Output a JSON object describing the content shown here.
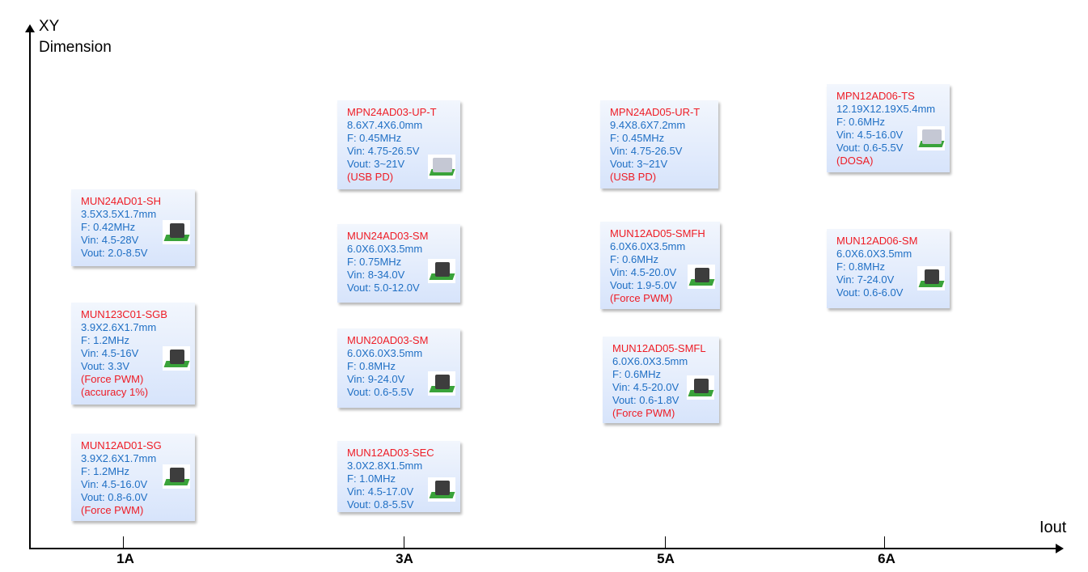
{
  "axes": {
    "y_title_line1": "XY",
    "y_title_line2": "Dimension",
    "x_title": "Iout",
    "x_ticks": [
      "1A",
      "3A",
      "5A",
      "6A"
    ]
  },
  "colors": {
    "part_name": "#ee1c25",
    "spec": "#1f6fc4",
    "note": "#ee1c25",
    "card_bg": "#dce7fb"
  },
  "cards": [
    {
      "name": "MUN24AD01-SH",
      "lines": [
        "3.5X3.5X1.7mm",
        "F: 0.42MHz",
        "Vin: 4.5-28V",
        "Vout: 2.0-8.5V"
      ],
      "notes": [],
      "icon": "module-chip-icon"
    },
    {
      "name": "MUN123C01-SGB",
      "lines": [
        "3.9X2.6X1.7mm",
        "F: 1.2MHz",
        "Vin: 4.5-16V",
        "Vout: 3.3V"
      ],
      "notes": [
        "(Force PWM)",
        "(accuracy 1%)"
      ],
      "icon": "module-chip-icon"
    },
    {
      "name": "MUN12AD01-SG",
      "lines": [
        "3.9X2.6X1.7mm",
        "F: 1.2MHz",
        "Vin: 4.5-16.0V",
        "Vout: 0.8-6.0V"
      ],
      "notes": [
        "(Force PWM)"
      ],
      "icon": "module-chip-icon"
    },
    {
      "name": "MPN24AD03-UP-T",
      "lines": [
        "8.6X7.4X6.0mm",
        "F: 0.45MHz",
        "Vin: 4.75-26.5V",
        "Vout: 3~21V"
      ],
      "notes": [
        "(USB PD)"
      ],
      "icon": "shielded-module-icon"
    },
    {
      "name": "MUN24AD03-SM",
      "lines": [
        "6.0X6.0X3.5mm",
        "F: 0.75MHz",
        "Vin: 8-34.0V",
        "Vout: 5.0-12.0V"
      ],
      "notes": [],
      "icon": "module-chip-icon"
    },
    {
      "name": "MUN20AD03-SM",
      "lines": [
        "6.0X6.0X3.5mm",
        "F: 0.8MHz",
        "Vin: 9-24.0V",
        "Vout: 0.6-5.5V"
      ],
      "notes": [],
      "icon": "module-chip-icon"
    },
    {
      "name": "MUN12AD03-SEC",
      "lines": [
        "3.0X2.8X1.5mm",
        "F: 1.0MHz",
        "Vin: 4.5-17.0V",
        "Vout: 0.8-5.5V"
      ],
      "notes": [],
      "icon": "module-chip-icon"
    },
    {
      "name": "MPN24AD05-UR-T",
      "lines": [
        "9.4X8.6X7.2mm",
        "F: 0.45MHz",
        "Vin: 4.75-26.5V",
        "Vout: 3~21V"
      ],
      "notes": [
        "(USB PD)"
      ],
      "icon": ""
    },
    {
      "name": "MUN12AD05-SMFH",
      "lines": [
        "6.0X6.0X3.5mm",
        "F: 0.6MHz",
        "Vin: 4.5-20.0V",
        "Vout: 1.9-5.0V"
      ],
      "notes": [
        "(Force PWM)"
      ],
      "icon": "module-chip-icon"
    },
    {
      "name": "MUN12AD05-SMFL",
      "lines": [
        "6.0X6.0X3.5mm",
        "F: 0.6MHz",
        "Vin: 4.5-20.0V",
        "Vout: 0.6-1.8V"
      ],
      "notes": [
        "(Force PWM)"
      ],
      "icon": "module-chip-icon"
    },
    {
      "name": "MPN12AD06-TS",
      "lines": [
        "12.19X12.19X5.4mm",
        "F: 0.6MHz",
        "Vin: 4.5-16.0V",
        "Vout: 0.6-5.5V"
      ],
      "notes": [
        "(DOSA)"
      ],
      "icon": "shielded-module-icon"
    },
    {
      "name": "MUN12AD06-SM",
      "lines": [
        "6.0X6.0X3.5mm",
        "F: 0.8MHz",
        "Vin: 7-24.0V",
        "Vout: 0.6-6.0V"
      ],
      "notes": [],
      "icon": "module-chip-icon"
    }
  ]
}
